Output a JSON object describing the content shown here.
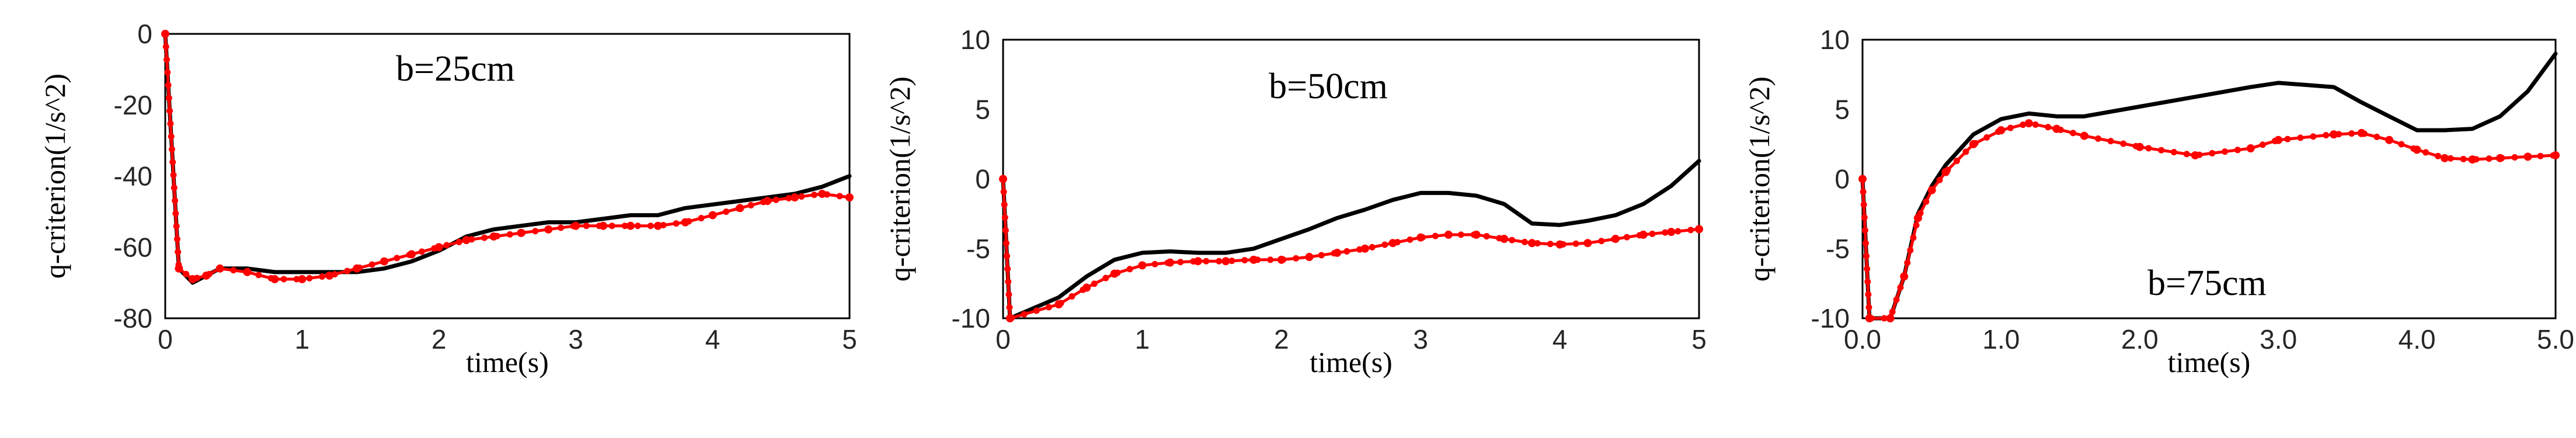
{
  "chart_data": [
    {
      "type": "line",
      "annotation": "b=25cm",
      "xlabel": "time(s)",
      "ylabel": "q-criterion(1/s^2)",
      "xlim": [
        0,
        5
      ],
      "ylim": [
        -80,
        0
      ],
      "xticks": [
        0,
        1,
        2,
        3,
        4,
        5
      ],
      "xtick_labels": [
        "0",
        "1",
        "2",
        "3",
        "4",
        "5"
      ],
      "yticks": [
        0,
        -20,
        -40,
        -60,
        -80
      ],
      "ytick_labels": [
        "0",
        "-20",
        "-40",
        "-60",
        "-80"
      ],
      "series": [
        {
          "name": "black",
          "color": "#000000",
          "style": "solid",
          "x": [
            0,
            0.1,
            0.2,
            0.3,
            0.4,
            0.6,
            0.8,
            1.0,
            1.2,
            1.4,
            1.6,
            1.8,
            2.0,
            2.2,
            2.4,
            2.6,
            2.8,
            3.0,
            3.2,
            3.4,
            3.6,
            3.8,
            4.0,
            4.2,
            4.4,
            4.6,
            4.8,
            5.0
          ],
          "y": [
            0,
            -66,
            -70,
            -68,
            -66,
            -66,
            -67,
            -67,
            -67,
            -67,
            -66,
            -64,
            -61,
            -57,
            -55,
            -54,
            -53,
            -53,
            -52,
            -51,
            -51,
            -49,
            -48,
            -47,
            -46,
            -45,
            -43,
            -40
          ]
        },
        {
          "name": "red",
          "color": "#ff0000",
          "style": "dotted-markers",
          "x": [
            0,
            0.1,
            0.2,
            0.3,
            0.4,
            0.6,
            0.8,
            1.0,
            1.2,
            1.4,
            1.6,
            1.8,
            2.0,
            2.2,
            2.4,
            2.6,
            2.8,
            3.0,
            3.2,
            3.4,
            3.6,
            3.8,
            4.0,
            4.2,
            4.4,
            4.6,
            4.8,
            5.0
          ],
          "y": [
            0,
            -66,
            -69,
            -68,
            -66,
            -67,
            -69,
            -69,
            -68,
            -66,
            -64,
            -62,
            -60,
            -58,
            -57,
            -56,
            -55,
            -54,
            -54,
            -54,
            -54,
            -53,
            -51,
            -49,
            -47,
            -46,
            -45,
            -46
          ]
        }
      ]
    },
    {
      "type": "line",
      "annotation": "b=50cm",
      "xlabel": "time(s)",
      "ylabel": "q-criterion(1/s^2)",
      "xlim": [
        0,
        5
      ],
      "ylim": [
        -10,
        10
      ],
      "xticks": [
        0,
        1,
        2,
        3,
        4,
        5
      ],
      "xtick_labels": [
        "0",
        "1",
        "2",
        "3",
        "4",
        "5"
      ],
      "yticks": [
        10,
        5,
        0,
        -5,
        -10
      ],
      "ytick_labels": [
        "10",
        "5",
        "0",
        "-5",
        "-10"
      ],
      "series": [
        {
          "name": "black",
          "color": "#000000",
          "style": "solid",
          "x": [
            0,
            0.05,
            0.4,
            0.6,
            0.8,
            1.0,
            1.2,
            1.4,
            1.6,
            1.8,
            2.0,
            2.2,
            2.4,
            2.6,
            2.8,
            3.0,
            3.2,
            3.4,
            3.6,
            3.8,
            4.0,
            4.2,
            4.4,
            4.6,
            4.8,
            5.0
          ],
          "y": [
            0,
            -10,
            -8.5,
            -7.0,
            -5.8,
            -5.3,
            -5.2,
            -5.3,
            -5.3,
            -5.0,
            -4.3,
            -3.6,
            -2.8,
            -2.2,
            -1.5,
            -1.0,
            -1.0,
            -1.2,
            -1.8,
            -3.2,
            -3.3,
            -3.0,
            -2.6,
            -1.8,
            -0.5,
            1.3
          ]
        },
        {
          "name": "red",
          "color": "#ff0000",
          "style": "dotted-markers",
          "x": [
            0,
            0.05,
            0.4,
            0.6,
            0.8,
            1.0,
            1.2,
            1.4,
            1.6,
            1.8,
            2.0,
            2.2,
            2.4,
            2.6,
            2.8,
            3.0,
            3.2,
            3.4,
            3.6,
            3.8,
            4.0,
            4.2,
            4.4,
            4.6,
            4.8,
            5.0
          ],
          "y": [
            0,
            -10,
            -9.0,
            -7.8,
            -6.8,
            -6.2,
            -6.0,
            -5.9,
            -5.9,
            -5.8,
            -5.8,
            -5.6,
            -5.3,
            -5.0,
            -4.6,
            -4.2,
            -4.0,
            -4.0,
            -4.3,
            -4.6,
            -4.7,
            -4.6,
            -4.3,
            -4.0,
            -3.8,
            -3.6
          ]
        }
      ]
    },
    {
      "type": "line",
      "annotation": "b=75cm",
      "xlabel": "time(s)",
      "ylabel": "q-criterion(1/s^2)",
      "xlim": [
        0,
        5
      ],
      "ylim": [
        -10,
        10
      ],
      "xticks": [
        0,
        1,
        2,
        3,
        4,
        5
      ],
      "xtick_labels": [
        "0.0",
        "1.0",
        "2.0",
        "3.0",
        "4.0",
        "5.0"
      ],
      "yticks": [
        10,
        5,
        0,
        -5,
        -10
      ],
      "ytick_labels": [
        "10",
        "5",
        "0",
        "-5",
        "-10"
      ],
      "series": [
        {
          "name": "black",
          "color": "#000000",
          "style": "solid",
          "x": [
            0,
            0.05,
            0.2,
            0.3,
            0.4,
            0.5,
            0.6,
            0.8,
            1.0,
            1.2,
            1.4,
            1.6,
            2.0,
            2.4,
            2.8,
            3.0,
            3.4,
            3.6,
            3.8,
            4.0,
            4.2,
            4.4,
            4.6,
            4.8,
            5.0
          ],
          "y": [
            0,
            -10,
            -10,
            -7.0,
            -2.5,
            -0.5,
            1.0,
            3.2,
            4.3,
            4.7,
            4.5,
            4.5,
            5.2,
            5.9,
            6.6,
            6.9,
            6.6,
            5.5,
            4.5,
            3.5,
            3.5,
            3.6,
            4.5,
            6.3,
            9.0
          ]
        },
        {
          "name": "red",
          "color": "#ff0000",
          "style": "dotted-markers",
          "x": [
            0,
            0.05,
            0.2,
            0.3,
            0.4,
            0.5,
            0.6,
            0.8,
            1.0,
            1.2,
            1.4,
            1.6,
            2.0,
            2.4,
            2.8,
            3.0,
            3.4,
            3.6,
            3.8,
            4.0,
            4.2,
            4.4,
            4.6,
            4.8,
            5.0
          ],
          "y": [
            0,
            -10,
            -10,
            -7.0,
            -2.8,
            -0.8,
            0.5,
            2.5,
            3.5,
            4.0,
            3.6,
            3.1,
            2.3,
            1.7,
            2.2,
            2.8,
            3.2,
            3.3,
            2.8,
            2.1,
            1.5,
            1.4,
            1.5,
            1.6,
            1.7
          ]
        }
      ]
    }
  ]
}
